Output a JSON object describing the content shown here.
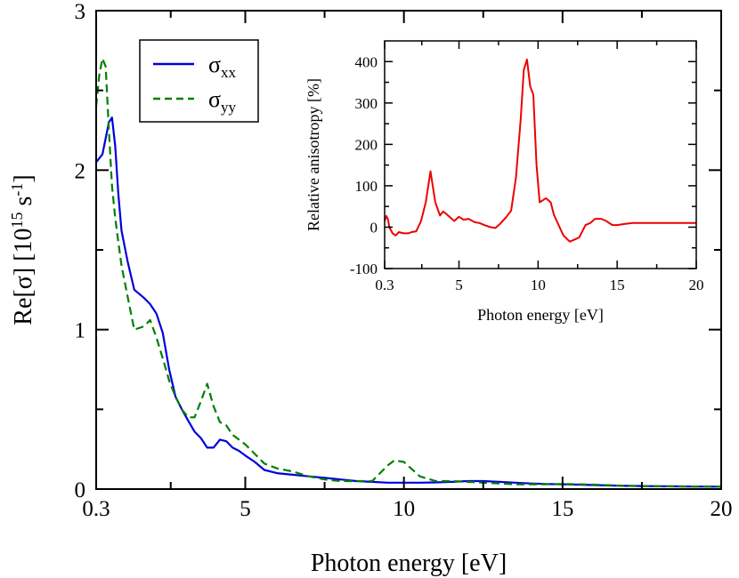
{
  "chart_data": [
    {
      "type": "line",
      "xlabel": "Photon energy [eV]",
      "ylabel": "Re[σ]  [10^15 s^-1]",
      "ylabel_parts": {
        "main": "Re[σ]  [10",
        "exp1": "15",
        "mid": " s",
        "exp2": "-1",
        "end": "]"
      },
      "xlim": [
        0.3,
        20
      ],
      "ylim": [
        0,
        3
      ],
      "xticks": [
        0.3,
        5,
        10,
        15,
        20
      ],
      "xtick_labels": [
        "0.3",
        "5",
        "10",
        "15",
        "20"
      ],
      "yticks": [
        0,
        1,
        2,
        3
      ],
      "ytick_labels": [
        "0",
        "1",
        "2",
        "3"
      ],
      "legend": {
        "placement": "top-left",
        "entries": [
          {
            "symbol": "σ",
            "subscript": "xx",
            "series": "sigma_xx"
          },
          {
            "symbol": "σ",
            "subscript": "yy",
            "series": "sigma_yy"
          }
        ]
      },
      "series": [
        {
          "name": "σxx",
          "id": "sigma_xx",
          "color": "#0000dd",
          "dash": "solid",
          "x": [
            0.3,
            0.5,
            0.7,
            0.8,
            0.9,
            1.0,
            1.1,
            1.3,
            1.5,
            1.8,
            2.0,
            2.2,
            2.4,
            2.6,
            2.8,
            3.0,
            3.2,
            3.4,
            3.6,
            3.8,
            4.0,
            4.2,
            4.4,
            4.6,
            4.8,
            5.0,
            5.3,
            5.6,
            6.0,
            6.5,
            7.0,
            7.5,
            8.0,
            8.5,
            9.0,
            9.5,
            10.0,
            10.5,
            11.0,
            11.5,
            12.0,
            12.5,
            13.0,
            13.5,
            14.0,
            14.5,
            15.0,
            15.5,
            16.0,
            17.0,
            18.0,
            19.0,
            20.0
          ],
          "values": [
            2.05,
            2.1,
            2.3,
            2.33,
            2.15,
            1.85,
            1.62,
            1.42,
            1.25,
            1.2,
            1.16,
            1.1,
            0.98,
            0.75,
            0.58,
            0.5,
            0.43,
            0.36,
            0.32,
            0.26,
            0.26,
            0.31,
            0.3,
            0.26,
            0.24,
            0.21,
            0.17,
            0.12,
            0.1,
            0.09,
            0.08,
            0.07,
            0.06,
            0.05,
            0.045,
            0.04,
            0.04,
            0.04,
            0.042,
            0.045,
            0.05,
            0.05,
            0.045,
            0.04,
            0.035,
            0.032,
            0.03,
            0.028,
            0.025,
            0.02,
            0.018,
            0.016,
            0.015
          ]
        },
        {
          "name": "σyy",
          "id": "sigma_yy",
          "color": "#008000",
          "dash": "dashed",
          "x": [
            0.3,
            0.4,
            0.5,
            0.6,
            0.7,
            0.8,
            0.9,
            1.0,
            1.1,
            1.3,
            1.5,
            1.8,
            2.0,
            2.2,
            2.4,
            2.6,
            2.8,
            3.0,
            3.2,
            3.4,
            3.6,
            3.8,
            4.0,
            4.2,
            4.4,
            4.6,
            4.8,
            5.0,
            5.3,
            5.6,
            6.0,
            6.5,
            7.0,
            7.5,
            8.0,
            8.5,
            9.0,
            9.5,
            9.7,
            10.0,
            10.5,
            11.0,
            11.5,
            12.0,
            12.5,
            13.0,
            13.5,
            14.0,
            14.5,
            15.0,
            15.5,
            16.0,
            17.0,
            18.0,
            19.0,
            20.0
          ],
          "values": [
            2.4,
            2.6,
            2.7,
            2.65,
            2.25,
            1.9,
            1.7,
            1.55,
            1.4,
            1.2,
            1.0,
            1.02,
            1.06,
            0.95,
            0.82,
            0.68,
            0.58,
            0.5,
            0.45,
            0.45,
            0.55,
            0.66,
            0.52,
            0.42,
            0.4,
            0.34,
            0.31,
            0.28,
            0.22,
            0.16,
            0.13,
            0.11,
            0.08,
            0.06,
            0.05,
            0.05,
            0.05,
            0.15,
            0.18,
            0.17,
            0.08,
            0.05,
            0.05,
            0.045,
            0.04,
            0.035,
            0.03,
            0.03,
            0.03,
            0.032,
            0.03,
            0.028,
            0.02,
            0.018,
            0.016,
            0.015
          ]
        }
      ]
    },
    {
      "type": "line",
      "xlabel": "Photon energy [eV]",
      "ylabel": "Relative anisotropy [%]",
      "xlim": [
        0.3,
        20
      ],
      "ylim": [
        -100,
        450
      ],
      "xticks": [
        0.3,
        5,
        10,
        15,
        20
      ],
      "xtick_labels": [
        "0.3",
        "5",
        "10",
        "15",
        "20"
      ],
      "yticks": [
        -100,
        0,
        100,
        200,
        300,
        400
      ],
      "ytick_labels": [
        "-100",
        "0",
        "100",
        "200",
        "300",
        "400"
      ],
      "series": [
        {
          "name": "Relative anisotropy",
          "id": "anisotropy",
          "color": "#ee0000",
          "dash": "solid",
          "x": [
            0.3,
            0.4,
            0.5,
            0.6,
            0.8,
            1.0,
            1.2,
            1.5,
            1.8,
            2.0,
            2.3,
            2.6,
            2.9,
            3.2,
            3.5,
            3.8,
            4.0,
            4.2,
            4.4,
            4.7,
            5.0,
            5.3,
            5.6,
            6.0,
            6.3,
            6.6,
            7.0,
            7.3,
            7.6,
            8.0,
            8.3,
            8.6,
            8.9,
            9.1,
            9.3,
            9.5,
            9.7,
            9.9,
            10.1,
            10.3,
            10.5,
            10.8,
            11.0,
            11.3,
            11.6,
            12.0,
            12.3,
            12.6,
            13.0,
            13.3,
            13.6,
            14.0,
            14.3,
            14.7,
            15.0,
            15.5,
            16.0,
            17.0,
            18.0,
            19.0,
            20.0
          ],
          "values": [
            15,
            27,
            20,
            0,
            -15,
            -20,
            -12,
            -15,
            -15,
            -12,
            -10,
            15,
            60,
            135,
            60,
            28,
            38,
            32,
            25,
            15,
            25,
            18,
            20,
            12,
            10,
            5,
            0,
            -2,
            8,
            25,
            40,
            120,
            260,
            380,
            405,
            340,
            320,
            150,
            60,
            65,
            70,
            60,
            30,
            5,
            -20,
            -35,
            -30,
            -25,
            5,
            10,
            20,
            20,
            15,
            5,
            5,
            8,
            10,
            10,
            10,
            10,
            10
          ]
        }
      ]
    }
  ]
}
